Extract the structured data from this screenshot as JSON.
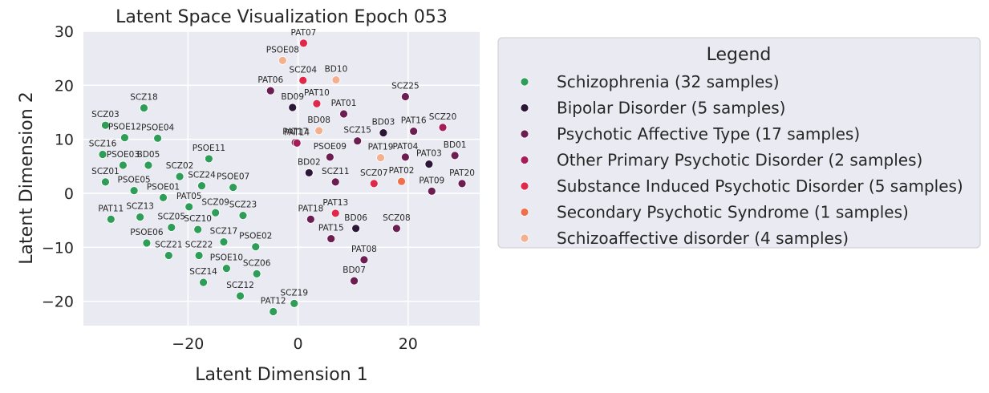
{
  "chart_data": {
    "type": "scatter",
    "title": "Latent Space Visualization Epoch 053",
    "xlabel": "Latent Dimension 1",
    "ylabel": "Latent Dimension 2",
    "xlim": [
      -39,
      33
    ],
    "ylim": [
      -24.5,
      30
    ],
    "xticks": [
      -20,
      0,
      20
    ],
    "yticks": [
      -20,
      -10,
      0,
      10,
      20,
      30
    ],
    "xtick_labels": [
      "−20",
      "0",
      "20"
    ],
    "ytick_labels": [
      "−20",
      "−10",
      "0",
      "10",
      "20",
      "30"
    ],
    "grid": true,
    "legend": {
      "title": "Legend",
      "placement": "outside-right",
      "entries": [
        {
          "key": "SCZ",
          "label": "Schizophrenia (32 samples)",
          "color": "#2e9d57"
        },
        {
          "key": "BD",
          "label": "Bipolar Disorder (5 samples)",
          "color": "#2d1739"
        },
        {
          "key": "PAT",
          "label": "Psychotic Affective Type (17 samples)",
          "color": "#6c1e52"
        },
        {
          "key": "OPP",
          "label": "Other Primary Psychotic Disorder (2 samples)",
          "color": "#a51e5a"
        },
        {
          "key": "SIP",
          "label": "Substance Induced Psychotic Disorder (5 samples)",
          "color": "#e0284a"
        },
        {
          "key": "SPS",
          "label": "Secondary Psychotic Syndrome (1 samples)",
          "color": "#ef6f4c"
        },
        {
          "key": "SA",
          "label": "Schizoaffective disorder (4 samples)",
          "color": "#f4b08e"
        }
      ]
    },
    "points": [
      {
        "label": "SCZ18",
        "x": -28,
        "y": 15.8,
        "group": "SCZ"
      },
      {
        "label": "SCZ03",
        "x": -35,
        "y": 12.6,
        "group": "SCZ"
      },
      {
        "label": "PSOE12",
        "x": -31.5,
        "y": 10.3,
        "group": "SCZ"
      },
      {
        "label": "PSOE04",
        "x": -25.5,
        "y": 10.2,
        "group": "SCZ"
      },
      {
        "label": "SCZ16",
        "x": -35.5,
        "y": 7.2,
        "group": "SCZ"
      },
      {
        "label": "PSOE03",
        "x": -31.8,
        "y": 5.2,
        "group": "SCZ"
      },
      {
        "label": "BD05",
        "x": -27.2,
        "y": 5.2,
        "group": "SCZ"
      },
      {
        "label": "PSOE11",
        "x": -16.2,
        "y": 6.4,
        "group": "SCZ"
      },
      {
        "label": "SCZ01",
        "x": -35,
        "y": 2.1,
        "group": "SCZ"
      },
      {
        "label": "PSOE05",
        "x": -29.8,
        "y": 0.5,
        "group": "SCZ"
      },
      {
        "label": "SCZ02",
        "x": -21.5,
        "y": 3.1,
        "group": "SCZ"
      },
      {
        "label": "SCZ24",
        "x": -17.5,
        "y": 1.4,
        "group": "SCZ"
      },
      {
        "label": "PSOE07",
        "x": -11.8,
        "y": 1.1,
        "group": "SCZ"
      },
      {
        "label": "PSOE01",
        "x": -24.5,
        "y": -0.8,
        "group": "SCZ"
      },
      {
        "label": "PAT05",
        "x": -19.8,
        "y": -2.5,
        "group": "SCZ"
      },
      {
        "label": "SCZ09",
        "x": -15,
        "y": -3.6,
        "group": "SCZ"
      },
      {
        "label": "SCZ23",
        "x": -10,
        "y": -4.1,
        "group": "SCZ"
      },
      {
        "label": "PAT11",
        "x": -34,
        "y": -4.8,
        "group": "SCZ"
      },
      {
        "label": "SCZ13",
        "x": -28.7,
        "y": -4.4,
        "group": "SCZ"
      },
      {
        "label": "SCZ05",
        "x": -23,
        "y": -6.3,
        "group": "SCZ"
      },
      {
        "label": "SCZ10",
        "x": -18.2,
        "y": -6.7,
        "group": "SCZ"
      },
      {
        "label": "PSOE06",
        "x": -27.5,
        "y": -9.2,
        "group": "SCZ"
      },
      {
        "label": "SCZ17",
        "x": -13.5,
        "y": -9,
        "group": "SCZ"
      },
      {
        "label": "PSOE02",
        "x": -7.7,
        "y": -9.9,
        "group": "SCZ"
      },
      {
        "label": "SCZ21",
        "x": -23.5,
        "y": -11.5,
        "group": "SCZ"
      },
      {
        "label": "SCZ22",
        "x": -18,
        "y": -11.5,
        "group": "SCZ"
      },
      {
        "label": "PSOE10",
        "x": -13,
        "y": -13.9,
        "group": "SCZ"
      },
      {
        "label": "SCZ06",
        "x": -7.5,
        "y": -14.9,
        "group": "SCZ"
      },
      {
        "label": "SCZ14",
        "x": -17.2,
        "y": -16.5,
        "group": "SCZ"
      },
      {
        "label": "SCZ12",
        "x": -10.5,
        "y": -19,
        "group": "SCZ"
      },
      {
        "label": "SCZ19",
        "x": -0.7,
        "y": -20.4,
        "group": "SCZ"
      },
      {
        "label": "PAT12",
        "x": -4.5,
        "y": -21.9,
        "group": "SCZ"
      },
      {
        "label": "BD09",
        "x": -1,
        "y": 15.9,
        "group": "BD"
      },
      {
        "label": "BD03",
        "x": 15.5,
        "y": 11.2,
        "group": "BD"
      },
      {
        "label": "PAT03",
        "x": 23.8,
        "y": 5.4,
        "group": "BD"
      },
      {
        "label": "BD02",
        "x": 2,
        "y": 3.8,
        "group": "BD"
      },
      {
        "label": "BD06",
        "x": 10.5,
        "y": -6.5,
        "group": "BD"
      },
      {
        "label": "PAT06",
        "x": -5,
        "y": 19,
        "group": "PAT"
      },
      {
        "label": "SCZ25",
        "x": 19.5,
        "y": 17.9,
        "group": "PAT"
      },
      {
        "label": "PAT01",
        "x": 8.3,
        "y": 14.7,
        "group": "PAT"
      },
      {
        "label": "PAT16",
        "x": 21,
        "y": 11.5,
        "group": "PAT"
      },
      {
        "label": "SCZ15",
        "x": 10.8,
        "y": 9.7,
        "group": "PAT"
      },
      {
        "label": "PAT17",
        "x": -0.5,
        "y": 9.4,
        "group": "PAT"
      },
      {
        "label": "PSOE09",
        "x": 5.8,
        "y": 6.7,
        "group": "PAT"
      },
      {
        "label": "PAT04",
        "x": 19.5,
        "y": 6.7,
        "group": "PAT"
      },
      {
        "label": "BD01",
        "x": 28.5,
        "y": 7.0,
        "group": "PAT"
      },
      {
        "label": "SCZ11",
        "x": 6.8,
        "y": 2.1,
        "group": "PAT"
      },
      {
        "label": "PAT09",
        "x": 24.3,
        "y": 0.4,
        "group": "PAT"
      },
      {
        "label": "PAT20",
        "x": 29.8,
        "y": 1.8,
        "group": "PAT"
      },
      {
        "label": "PAT18",
        "x": 2.3,
        "y": -4.8,
        "group": "PAT"
      },
      {
        "label": "SCZ08",
        "x": 17.9,
        "y": -6.5,
        "group": "PAT"
      },
      {
        "label": "PAT15",
        "x": 6,
        "y": -8.4,
        "group": "PAT"
      },
      {
        "label": "PAT08",
        "x": 12,
        "y": -12.3,
        "group": "PAT"
      },
      {
        "label": "BD07",
        "x": 10.2,
        "y": -16.2,
        "group": "PAT"
      },
      {
        "label": "PAT14",
        "x": -0.2,
        "y": 9.3,
        "group": "OPP"
      },
      {
        "label": "SCZ20",
        "x": 26.3,
        "y": 12.2,
        "group": "OPP"
      },
      {
        "label": "PAT07",
        "x": 1,
        "y": 27.8,
        "group": "SIP"
      },
      {
        "label": "SCZ04",
        "x": 0.9,
        "y": 20.9,
        "group": "SIP"
      },
      {
        "label": "PAT10",
        "x": 3.4,
        "y": 16.6,
        "group": "SIP"
      },
      {
        "label": "SCZ07",
        "x": 13.8,
        "y": 1.8,
        "group": "SIP"
      },
      {
        "label": "PAT13",
        "x": 6.8,
        "y": -3.7,
        "group": "SIP"
      },
      {
        "label": "PAT02",
        "x": 18.8,
        "y": 2.2,
        "group": "SPS"
      },
      {
        "label": "PSOE08",
        "x": -2.8,
        "y": 24.6,
        "group": "SA"
      },
      {
        "label": "BD10",
        "x": 6.9,
        "y": 21,
        "group": "SA"
      },
      {
        "label": "BD08",
        "x": 3.8,
        "y": 11.6,
        "group": "SA"
      },
      {
        "label": "PAT19",
        "x": 15,
        "y": 6.6,
        "group": "SA"
      }
    ]
  }
}
